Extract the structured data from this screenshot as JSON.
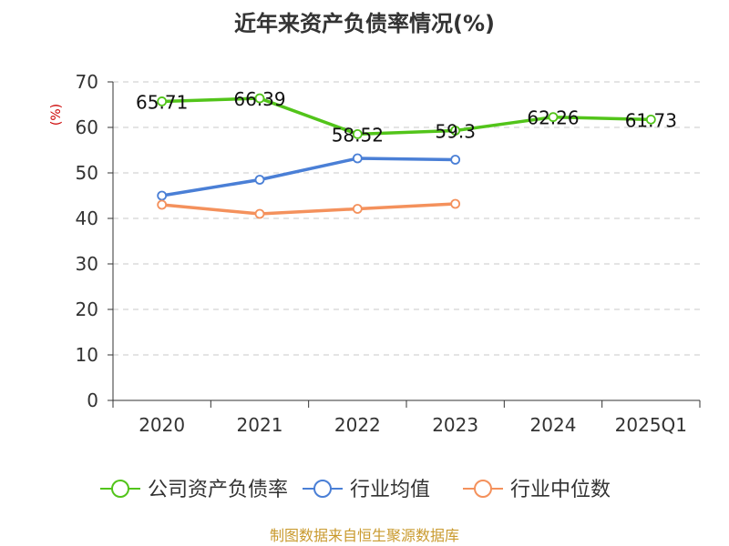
{
  "title": "近年来资产负债率情况(%)",
  "source_note": "制图数据来自恒生聚源数据库",
  "chart_data": {
    "type": "line",
    "title": "近年来资产负债率情况(%)",
    "ylabel": "(%)",
    "xlabel": "",
    "ylim": [
      0,
      70
    ],
    "yticks": [
      0,
      10,
      20,
      30,
      40,
      50,
      60,
      70
    ],
    "categories": [
      "2020",
      "2021",
      "2022",
      "2023",
      "2024",
      "2025Q1"
    ],
    "grid": true,
    "legend_position": "bottom",
    "series": [
      {
        "name": "公司资产负债率",
        "color": "#52c41a",
        "values": [
          65.71,
          66.39,
          58.52,
          59.3,
          62.26,
          61.73
        ],
        "labels": [
          "65.71",
          "66.39",
          "58.52",
          "59.3",
          "62.26",
          "61.73"
        ]
      },
      {
        "name": "行业均值",
        "color": "#4a7fd6",
        "values": [
          45.0,
          48.5,
          53.2,
          52.9,
          null,
          null
        ],
        "labels": []
      },
      {
        "name": "行业中位数",
        "color": "#f4915c",
        "values": [
          43.0,
          41.0,
          42.1,
          43.2,
          null,
          null
        ],
        "labels": []
      }
    ]
  }
}
